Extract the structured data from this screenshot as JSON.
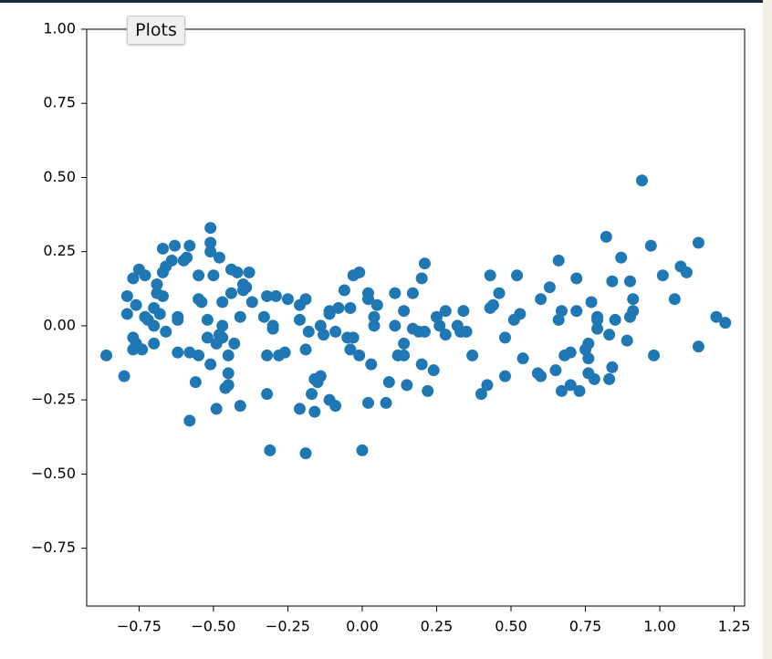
{
  "ui": {
    "button": "Plots"
  },
  "chart_data": {
    "type": "scatter",
    "color": "#1f77b4",
    "xlim": [
      -0.926,
      1.285
    ],
    "ylim": [
      -0.945,
      1.0
    ],
    "xticks": [
      {
        "value": -0.75,
        "label": "−0.75"
      },
      {
        "value": -0.5,
        "label": "−0.50"
      },
      {
        "value": -0.25,
        "label": "−0.25"
      },
      {
        "value": 0,
        "label": "0.00"
      },
      {
        "value": 0.25,
        "label": "0.25"
      },
      {
        "value": 0.5,
        "label": "0.50"
      },
      {
        "value": 0.75,
        "label": "0.75"
      },
      {
        "value": 1,
        "label": "1.00"
      },
      {
        "value": 1.25,
        "label": "1.25"
      }
    ],
    "yticks": [
      {
        "value": -0.75,
        "label": "−0.75"
      },
      {
        "value": -0.5,
        "label": "−0.50"
      },
      {
        "value": -0.25,
        "label": "−0.25"
      },
      {
        "value": 0,
        "label": "0.00"
      },
      {
        "value": 0.25,
        "label": "0.25"
      },
      {
        "value": 0.5,
        "label": "0.50"
      },
      {
        "value": 0.75,
        "label": "0.75"
      },
      {
        "value": 1,
        "label": "1.00"
      }
    ],
    "x": [
      -0.86,
      -0.8,
      -0.79,
      -0.79,
      -0.77,
      -0.76,
      -0.77,
      -0.77,
      -0.76,
      -0.75,
      -0.74,
      -0.73,
      -0.73,
      -0.72,
      -0.7,
      -0.7,
      -0.69,
      -0.69,
      -0.7,
      -0.67,
      -0.68,
      -0.67,
      -0.66,
      -0.67,
      -0.66,
      -0.63,
      -0.64,
      -0.62,
      -0.62,
      -0.62,
      -0.6,
      -0.59,
      -0.58,
      -0.58,
      -0.58,
      -0.56,
      -0.55,
      -0.55,
      -0.55,
      -0.54,
      -0.52,
      -0.51,
      -0.51,
      -0.51,
      -0.5,
      -0.52,
      -0.51,
      -0.49,
      -0.48,
      -0.49,
      -0.48,
      -0.47,
      -0.47,
      -0.47,
      -0.46,
      -0.45,
      -0.45,
      -0.45,
      -0.44,
      -0.44,
      -0.43,
      -0.42,
      -0.41,
      -0.41,
      -0.4,
      -0.4,
      -0.39,
      -0.38,
      -0.37,
      -0.33,
      -0.32,
      -0.32,
      -0.32,
      -0.31,
      -0.3,
      -0.3,
      -0.29,
      -0.28,
      -0.26,
      -0.25,
      -0.21,
      -0.21,
      -0.21,
      -0.19,
      -0.19,
      -0.19,
      -0.18,
      -0.17,
      -0.16,
      -0.16,
      -0.15,
      -0.14,
      -0.14,
      -0.13,
      -0.11,
      -0.11,
      -0.11,
      -0.09,
      -0.09,
      -0.08,
      -0.06,
      -0.05,
      -0.04,
      -0.04,
      -0.03,
      -0.03,
      -0.01,
      -0.01,
      0.0,
      0.02,
      0.02,
      0.02,
      0.03,
      0.04,
      0.04,
      0.05,
      0.08,
      0.09,
      0.11,
      0.11,
      0.12,
      0.14,
      0.14,
      0.14,
      0.15,
      0.17,
      0.17,
      0.19,
      0.2,
      0.21,
      0.21,
      0.2,
      0.22,
      0.24,
      0.25,
      0.26,
      0.28,
      0.28,
      0.32,
      0.33,
      0.34,
      0.35,
      0.37,
      0.4,
      0.42,
      0.43,
      0.43,
      0.44,
      0.46,
      0.48,
      0.48,
      0.51,
      0.52,
      0.53,
      0.54,
      0.59,
      0.6,
      0.6,
      0.63,
      0.65,
      0.66,
      0.66,
      0.67,
      0.67,
      0.68,
      0.7,
      0.7,
      0.72,
      0.72,
      0.73,
      0.75,
      0.76,
      0.76,
      0.76,
      0.77,
      0.78,
      0.79,
      0.79,
      0.79,
      0.82,
      0.83,
      0.84,
      0.83,
      0.84,
      0.85,
      0.87,
      0.89,
      0.9,
      0.9,
      0.91,
      0.91,
      0.94,
      0.97,
      0.98,
      1.01,
      1.05,
      1.07,
      1.09,
      1.13,
      1.13,
      1.19,
      1.22
    ],
    "y": [
      -0.1,
      -0.17,
      0.04,
      0.1,
      0.16,
      0.07,
      -0.04,
      -0.08,
      -0.06,
      0.19,
      -0.08,
      0.17,
      0.03,
      0.02,
      0.0,
      -0.06,
      0.14,
      0.11,
      0.06,
      0.18,
      0.04,
      0.1,
      -0.02,
      0.26,
      0.2,
      0.27,
      0.22,
      0.03,
      0.02,
      -0.09,
      0.22,
      0.23,
      -0.09,
      -0.32,
      0.27,
      -0.19,
      -0.1,
      0.17,
      0.09,
      0.08,
      0.02,
      0.33,
      0.28,
      0.25,
      0.17,
      -0.04,
      -0.13,
      -0.28,
      0.23,
      -0.06,
      -0.03,
      0.08,
      0.0,
      -0.04,
      -0.21,
      -0.16,
      -0.2,
      -0.1,
      0.11,
      0.19,
      -0.06,
      0.18,
      0.03,
      -0.27,
      0.12,
      0.14,
      0.13,
      0.18,
      0.08,
      0.03,
      -0.23,
      0.1,
      -0.1,
      -0.42,
      0.0,
      -0.01,
      0.1,
      -0.1,
      -0.09,
      0.09,
      -0.28,
      0.02,
      0.07,
      -0.43,
      0.09,
      -0.08,
      -0.02,
      -0.23,
      -0.29,
      -0.18,
      -0.19,
      0.0,
      -0.17,
      -0.03,
      0.04,
      -0.25,
      0.05,
      -0.02,
      -0.27,
      0.06,
      0.12,
      -0.04,
      -0.08,
      0.06,
      0.17,
      -0.04,
      -0.1,
      0.18,
      -0.42,
      -0.26,
      0.11,
      0.09,
      -0.13,
      0.03,
      0.0,
      0.07,
      -0.26,
      -0.19,
      0.11,
      0.0,
      -0.1,
      0.05,
      -0.06,
      -0.1,
      -0.2,
      0.11,
      -0.01,
      -0.02,
      0.16,
      0.21,
      -0.02,
      -0.13,
      -0.22,
      -0.15,
      0.03,
      0.0,
      0.05,
      -0.03,
      0.0,
      -0.02,
      0.05,
      -0.02,
      -0.1,
      -0.23,
      -0.2,
      0.17,
      0.06,
      0.07,
      0.11,
      -0.17,
      -0.04,
      0.02,
      0.17,
      0.04,
      -0.11,
      -0.16,
      -0.17,
      0.09,
      0.13,
      -0.15,
      0.22,
      0.02,
      0.05,
      -0.22,
      -0.1,
      -0.09,
      -0.2,
      0.16,
      0.05,
      -0.22,
      -0.08,
      -0.11,
      -0.16,
      -0.06,
      0.08,
      -0.18,
      0.03,
      -0.01,
      0.02,
      0.3,
      -0.03,
      -0.14,
      -0.18,
      0.15,
      0.02,
      0.23,
      -0.05,
      0.15,
      0.03,
      0.09,
      0.05,
      0.49,
      0.27,
      -0.1,
      0.17,
      0.09,
      0.2,
      0.18,
      0.28,
      -0.07,
      0.03,
      0.01
    ]
  }
}
